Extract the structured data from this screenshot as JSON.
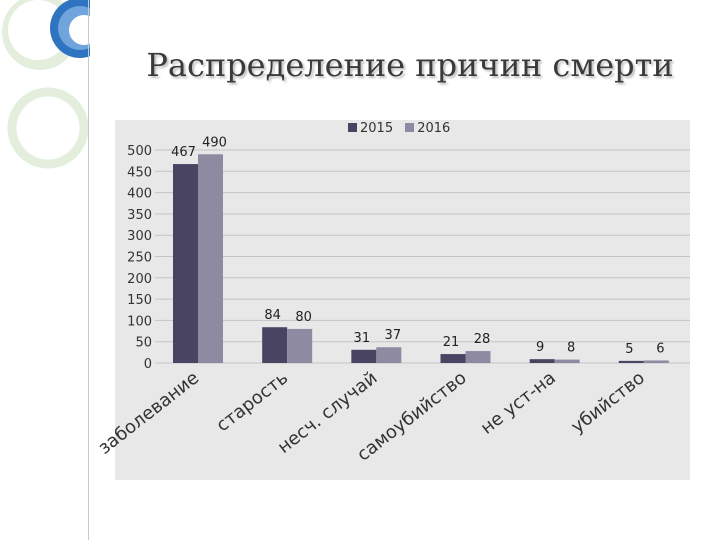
{
  "slide": {
    "title": "Распределение причин смерти"
  },
  "colors": {
    "series_2015": "#4a4463",
    "series_2016": "#8e8aa1",
    "panel": "#e8e8e8",
    "deco_blue": "#2f74c0",
    "deco_light": "#e3eedd"
  },
  "chart_data": {
    "type": "bar",
    "categories": [
      "заболевание",
      "старость",
      "несч. случай",
      "самоубийство",
      "не уст-на",
      "убийство"
    ],
    "series": [
      {
        "name": "2015",
        "values": [
          467,
          84,
          31,
          21,
          9,
          5
        ]
      },
      {
        "name": "2016",
        "values": [
          490,
          80,
          37,
          28,
          8,
          6
        ]
      }
    ],
    "ylim": [
      0,
      500
    ],
    "yticks": [
      0,
      50,
      100,
      150,
      200,
      250,
      300,
      350,
      400,
      450,
      500
    ],
    "grid": true,
    "legend": "top-center",
    "data_labels": true
  }
}
